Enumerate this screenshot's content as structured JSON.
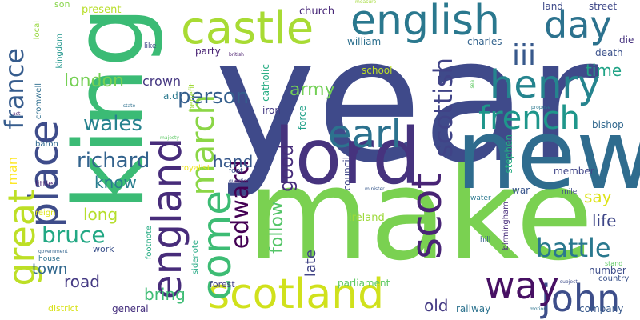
{
  "words": [
    {
      "text": "year",
      "color": "#3f4a8a"
    },
    {
      "text": "make",
      "color": "#7ad151"
    },
    {
      "text": "new",
      "color": "#2f6c8e"
    },
    {
      "text": "king",
      "color": "#3bbb75"
    },
    {
      "text": "lord",
      "color": "#46337e"
    },
    {
      "text": "english",
      "color": "#2a788e"
    },
    {
      "text": "scotland",
      "color": "#d0e11c"
    },
    {
      "text": "england",
      "color": "#472c7a"
    },
    {
      "text": "place",
      "color": "#3e4c8a"
    },
    {
      "text": "great",
      "color": "#bddf26"
    },
    {
      "text": "castle",
      "color": "#a8db34"
    },
    {
      "text": "day",
      "color": "#2c728e"
    },
    {
      "text": "henry",
      "color": "#25848e"
    },
    {
      "text": "come",
      "color": "#3dbc74"
    },
    {
      "text": "earl",
      "color": "#2c728e"
    },
    {
      "text": "scot",
      "color": "#482475"
    },
    {
      "text": "john",
      "color": "#3d4e8a"
    },
    {
      "text": "way",
      "color": "#471063"
    },
    {
      "text": "french",
      "color": "#1f968b"
    },
    {
      "text": "march",
      "color": "#8bd646"
    },
    {
      "text": "scottish",
      "color": "#404387"
    },
    {
      "text": "iii",
      "color": "#38598c"
    },
    {
      "text": "france",
      "color": "#365c8d"
    },
    {
      "text": "edward",
      "color": "#440154"
    },
    {
      "text": "battle",
      "color": "#2a788e"
    },
    {
      "text": "bruce",
      "color": "#22a884"
    },
    {
      "text": "richard",
      "color": "#33638d"
    },
    {
      "text": "wales",
      "color": "#26828e"
    },
    {
      "text": "person",
      "color": "#355f8d"
    },
    {
      "text": "london",
      "color": "#75d054"
    },
    {
      "text": "good",
      "color": "#472d7b"
    },
    {
      "text": "follow",
      "color": "#54c568"
    },
    {
      "text": "army",
      "color": "#73d056"
    },
    {
      "text": "know",
      "color": "#287d8e"
    },
    {
      "text": "hand",
      "color": "#38598c"
    },
    {
      "text": "long",
      "color": "#b5de2b"
    },
    {
      "text": "say",
      "color": "#dde318"
    },
    {
      "text": "life",
      "color": "#3f4788"
    },
    {
      "text": "time",
      "color": "#20a386"
    },
    {
      "text": "late",
      "color": "#414487"
    },
    {
      "text": "bring",
      "color": "#3dbc74"
    },
    {
      "text": "road",
      "color": "#443983"
    },
    {
      "text": "town",
      "color": "#31688e"
    },
    {
      "text": "old",
      "color": "#443a83"
    },
    {
      "text": "crown",
      "color": "#453781"
    },
    {
      "text": "man",
      "color": "#fde725"
    },
    {
      "text": "church",
      "color": "#482878"
    },
    {
      "text": "present",
      "color": "#b8de29"
    },
    {
      "text": "son",
      "color": "#86d549"
    },
    {
      "text": "land",
      "color": "#3e4a89"
    },
    {
      "text": "street",
      "color": "#3f4889"
    },
    {
      "text": "charles",
      "color": "#33638d"
    },
    {
      "text": "william",
      "color": "#2d708e"
    },
    {
      "text": "party",
      "color": "#482173"
    },
    {
      "text": "death",
      "color": "#3b518b"
    },
    {
      "text": "die",
      "color": "#46327e"
    },
    {
      "text": "school",
      "color": "#bddf26"
    },
    {
      "text": "catholic",
      "color": "#25ac82"
    },
    {
      "text": "a.d",
      "color": "#2a788e"
    },
    {
      "text": "iron",
      "color": "#443983"
    },
    {
      "text": "force",
      "color": "#1fa088"
    },
    {
      "text": "council",
      "color": "#3f4788"
    },
    {
      "text": "stephen",
      "color": "#26ad81"
    },
    {
      "text": "bishop",
      "color": "#31688e"
    },
    {
      "text": "member",
      "color": "#404588"
    },
    {
      "text": "war",
      "color": "#39558c"
    },
    {
      "text": "ireland",
      "color": "#9dd93b"
    },
    {
      "text": "parliament",
      "color": "#5ec962"
    },
    {
      "text": "railway",
      "color": "#2c728e"
    },
    {
      "text": "company",
      "color": "#38598c"
    },
    {
      "text": "number",
      "color": "#3d4d8a"
    },
    {
      "text": "country",
      "color": "#3b528b"
    },
    {
      "text": "general",
      "color": "#46307e"
    },
    {
      "text": "forest",
      "color": "#433e85"
    },
    {
      "text": "district",
      "color": "#d8e219"
    },
    {
      "text": "work",
      "color": "#3b518b"
    },
    {
      "text": "house",
      "color": "#2d708e"
    },
    {
      "text": "reign",
      "color": "#dde318"
    },
    {
      "text": "little",
      "color": "#481f70"
    },
    {
      "text": "baron",
      "color": "#30698e"
    },
    {
      "text": "cromwell",
      "color": "#2e6e8e"
    },
    {
      "text": "kingdom",
      "color": "#1f958b"
    },
    {
      "text": "local",
      "color": "#98d83e"
    },
    {
      "text": "like",
      "color": "#3e4989"
    },
    {
      "text": "benefit",
      "color": "#a0da39"
    },
    {
      "text": "birmingham",
      "color": "#472c7a"
    },
    {
      "text": "footnote",
      "color": "#25ab82"
    },
    {
      "text": "sidenote",
      "color": "#23a983"
    },
    {
      "text": "royalist",
      "color": "#f1e51d"
    },
    {
      "text": "question",
      "color": "#3f4788"
    },
    {
      "text": "foot",
      "color": "#3b528b"
    },
    {
      "text": "hill",
      "color": "#365d8d"
    },
    {
      "text": "mile",
      "color": "#3e4a89"
    },
    {
      "text": "water",
      "color": "#2a788e"
    },
    {
      "text": "stand",
      "color": "#5ec962"
    },
    {
      "text": "majesty",
      "color": "#5cc863"
    },
    {
      "text": "british",
      "color": "#481b6d"
    },
    {
      "text": "minister",
      "color": "#38598c"
    },
    {
      "text": "government",
      "color": "#32648e"
    },
    {
      "text": "subject",
      "color": "#3e4c8a"
    },
    {
      "text": "motion",
      "color": "#2c738e"
    },
    {
      "text": "propose",
      "color": "#2a788e"
    },
    {
      "text": "state",
      "color": "#2d708e"
    },
    {
      "text": "sea",
      "color": "#5ec962"
    },
    {
      "text": "measure",
      "color": "#a2da37"
    },
    {
      "text": "act",
      "color": "#481f70"
    }
  ]
}
